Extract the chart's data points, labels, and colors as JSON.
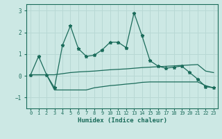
{
  "xlabel": "Humidex (Indice chaleur)",
  "x_values": [
    0,
    1,
    2,
    3,
    4,
    5,
    6,
    7,
    8,
    9,
    10,
    11,
    12,
    13,
    14,
    15,
    16,
    17,
    18,
    19,
    20,
    21,
    22,
    23
  ],
  "line1_y": [
    0.05,
    0.9,
    0.05,
    -0.55,
    1.4,
    2.3,
    1.25,
    0.9,
    0.95,
    1.2,
    1.55,
    1.55,
    1.3,
    2.9,
    1.85,
    0.7,
    0.45,
    0.35,
    0.4,
    0.45,
    0.15,
    -0.15,
    -0.5,
    -0.55
  ],
  "line2_y": [
    0.05,
    0.05,
    0.05,
    -0.65,
    -0.65,
    -0.65,
    -0.65,
    -0.65,
    -0.55,
    -0.5,
    -0.45,
    -0.42,
    -0.38,
    -0.35,
    -0.3,
    -0.28,
    -0.28,
    -0.28,
    -0.28,
    -0.28,
    -0.28,
    -0.28,
    -0.45,
    -0.55
  ],
  "line3_y": [
    0.05,
    0.05,
    0.05,
    0.05,
    0.1,
    0.15,
    0.18,
    0.2,
    0.22,
    0.25,
    0.28,
    0.3,
    0.32,
    0.35,
    0.38,
    0.4,
    0.42,
    0.44,
    0.46,
    0.48,
    0.5,
    0.52,
    0.22,
    0.15
  ],
  "line_color": "#1a6b5a",
  "bg_color": "#cce8e4",
  "grid_color": "#b8d8d4",
  "ylim": [
    -1.5,
    3.3
  ],
  "yticks": [
    -1,
    0,
    1,
    2,
    3
  ],
  "fig_bg": "#cce8e4",
  "tick_fontsize": 5.0,
  "xlabel_fontsize": 6.5
}
